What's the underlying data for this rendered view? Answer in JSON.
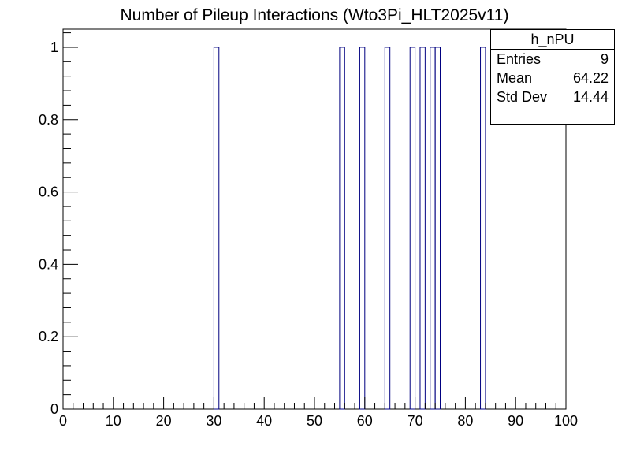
{
  "chart_data": {
    "type": "bar",
    "title": "Number of Pileup Interactions (Wto3Pi_HLT2025v11)",
    "xlim": [
      0,
      100
    ],
    "ylim": [
      0,
      1.05
    ],
    "bin_width": 1,
    "x_ticks": [
      "0",
      "10",
      "20",
      "30",
      "40",
      "50",
      "60",
      "70",
      "80",
      "90",
      "100"
    ],
    "y_ticks": [
      "0",
      "0.2",
      "0.4",
      "0.6",
      "0.8",
      "1"
    ],
    "bins": [
      {
        "x_low": 30,
        "value": 1
      },
      {
        "x_low": 55,
        "value": 1
      },
      {
        "x_low": 59,
        "value": 1
      },
      {
        "x_low": 64,
        "value": 1
      },
      {
        "x_low": 69,
        "value": 1
      },
      {
        "x_low": 71,
        "value": 1
      },
      {
        "x_low": 73,
        "value": 1
      },
      {
        "x_low": 74,
        "value": 1
      },
      {
        "x_low": 83,
        "value": 1
      }
    ],
    "line_color": "#000080",
    "grid": false
  },
  "stats": {
    "name": "h_nPU",
    "entries_label": "Entries",
    "entries": "9",
    "mean_label": "Mean",
    "mean": "64.22",
    "stddev_label": "Std Dev",
    "stddev": "14.44"
  }
}
